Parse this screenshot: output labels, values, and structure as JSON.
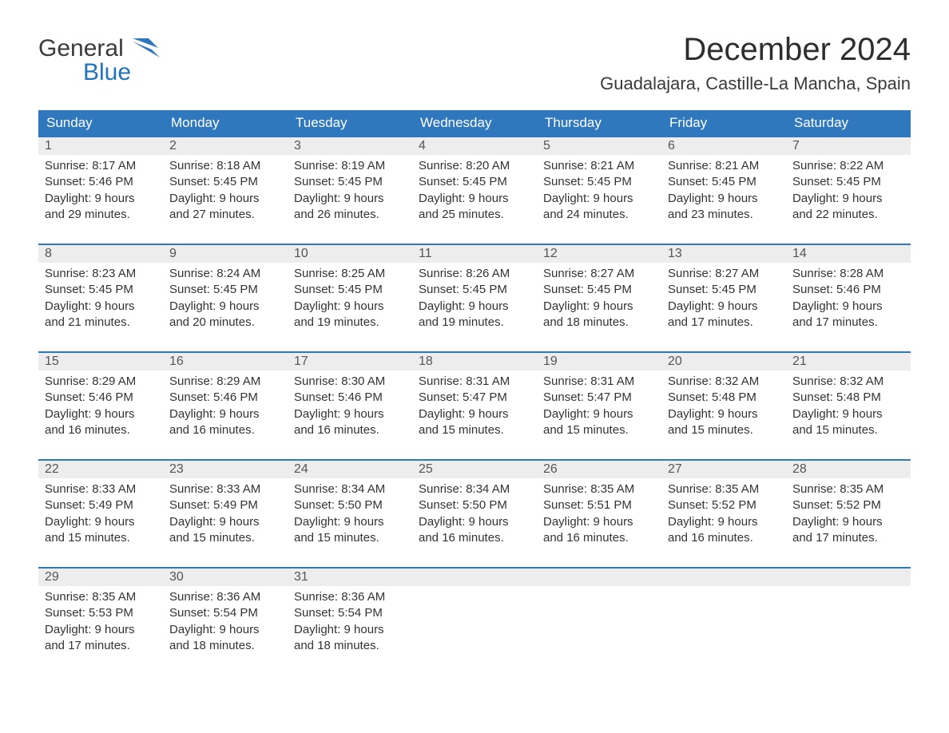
{
  "logo": {
    "word1": "General",
    "word2": "Blue",
    "brand_color": "#2173ba",
    "text_color": "#3a3a3a"
  },
  "title": "December 2024",
  "location": "Guadalajara, Castille-La Mancha, Spain",
  "colors": {
    "header_bg": "#2f78bd",
    "header_text": "#ffffff",
    "daynum_bg": "#ededed",
    "daynum_text": "#555555",
    "body_text": "#333333",
    "row_border": "#2f78bd",
    "page_bg": "#ffffff"
  },
  "typography": {
    "title_fontsize": 40,
    "location_fontsize": 22,
    "header_fontsize": 17,
    "daynum_fontsize": 16,
    "body_fontsize": 15,
    "font_family": "Arial"
  },
  "weekdays": [
    "Sunday",
    "Monday",
    "Tuesday",
    "Wednesday",
    "Thursday",
    "Friday",
    "Saturday"
  ],
  "labels": {
    "sunrise": "Sunrise:",
    "sunset": "Sunset:",
    "daylight_prefix": "Daylight:",
    "hours_word": "hours",
    "and_word": "and",
    "minutes_word": "minutes."
  },
  "days": [
    {
      "n": 1,
      "sunrise": "8:17 AM",
      "sunset": "5:46 PM",
      "dh": 9,
      "dm": 29
    },
    {
      "n": 2,
      "sunrise": "8:18 AM",
      "sunset": "5:45 PM",
      "dh": 9,
      "dm": 27
    },
    {
      "n": 3,
      "sunrise": "8:19 AM",
      "sunset": "5:45 PM",
      "dh": 9,
      "dm": 26
    },
    {
      "n": 4,
      "sunrise": "8:20 AM",
      "sunset": "5:45 PM",
      "dh": 9,
      "dm": 25
    },
    {
      "n": 5,
      "sunrise": "8:21 AM",
      "sunset": "5:45 PM",
      "dh": 9,
      "dm": 24
    },
    {
      "n": 6,
      "sunrise": "8:21 AM",
      "sunset": "5:45 PM",
      "dh": 9,
      "dm": 23
    },
    {
      "n": 7,
      "sunrise": "8:22 AM",
      "sunset": "5:45 PM",
      "dh": 9,
      "dm": 22
    },
    {
      "n": 8,
      "sunrise": "8:23 AM",
      "sunset": "5:45 PM",
      "dh": 9,
      "dm": 21
    },
    {
      "n": 9,
      "sunrise": "8:24 AM",
      "sunset": "5:45 PM",
      "dh": 9,
      "dm": 20
    },
    {
      "n": 10,
      "sunrise": "8:25 AM",
      "sunset": "5:45 PM",
      "dh": 9,
      "dm": 19
    },
    {
      "n": 11,
      "sunrise": "8:26 AM",
      "sunset": "5:45 PM",
      "dh": 9,
      "dm": 19
    },
    {
      "n": 12,
      "sunrise": "8:27 AM",
      "sunset": "5:45 PM",
      "dh": 9,
      "dm": 18
    },
    {
      "n": 13,
      "sunrise": "8:27 AM",
      "sunset": "5:45 PM",
      "dh": 9,
      "dm": 17
    },
    {
      "n": 14,
      "sunrise": "8:28 AM",
      "sunset": "5:46 PM",
      "dh": 9,
      "dm": 17
    },
    {
      "n": 15,
      "sunrise": "8:29 AM",
      "sunset": "5:46 PM",
      "dh": 9,
      "dm": 16
    },
    {
      "n": 16,
      "sunrise": "8:29 AM",
      "sunset": "5:46 PM",
      "dh": 9,
      "dm": 16
    },
    {
      "n": 17,
      "sunrise": "8:30 AM",
      "sunset": "5:46 PM",
      "dh": 9,
      "dm": 16
    },
    {
      "n": 18,
      "sunrise": "8:31 AM",
      "sunset": "5:47 PM",
      "dh": 9,
      "dm": 15
    },
    {
      "n": 19,
      "sunrise": "8:31 AM",
      "sunset": "5:47 PM",
      "dh": 9,
      "dm": 15
    },
    {
      "n": 20,
      "sunrise": "8:32 AM",
      "sunset": "5:48 PM",
      "dh": 9,
      "dm": 15
    },
    {
      "n": 21,
      "sunrise": "8:32 AM",
      "sunset": "5:48 PM",
      "dh": 9,
      "dm": 15
    },
    {
      "n": 22,
      "sunrise": "8:33 AM",
      "sunset": "5:49 PM",
      "dh": 9,
      "dm": 15
    },
    {
      "n": 23,
      "sunrise": "8:33 AM",
      "sunset": "5:49 PM",
      "dh": 9,
      "dm": 15
    },
    {
      "n": 24,
      "sunrise": "8:34 AM",
      "sunset": "5:50 PM",
      "dh": 9,
      "dm": 15
    },
    {
      "n": 25,
      "sunrise": "8:34 AM",
      "sunset": "5:50 PM",
      "dh": 9,
      "dm": 16
    },
    {
      "n": 26,
      "sunrise": "8:35 AM",
      "sunset": "5:51 PM",
      "dh": 9,
      "dm": 16
    },
    {
      "n": 27,
      "sunrise": "8:35 AM",
      "sunset": "5:52 PM",
      "dh": 9,
      "dm": 16
    },
    {
      "n": 28,
      "sunrise": "8:35 AM",
      "sunset": "5:52 PM",
      "dh": 9,
      "dm": 17
    },
    {
      "n": 29,
      "sunrise": "8:35 AM",
      "sunset": "5:53 PM",
      "dh": 9,
      "dm": 17
    },
    {
      "n": 30,
      "sunrise": "8:36 AM",
      "sunset": "5:54 PM",
      "dh": 9,
      "dm": 18
    },
    {
      "n": 31,
      "sunrise": "8:36 AM",
      "sunset": "5:54 PM",
      "dh": 9,
      "dm": 18
    }
  ],
  "layout": {
    "columns": 7,
    "rows": 5,
    "start_weekday_index": 0,
    "trailing_empty": 4
  }
}
